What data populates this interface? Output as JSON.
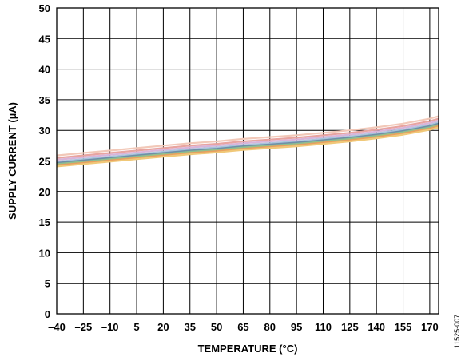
{
  "chart_data": {
    "type": "line",
    "title": "",
    "xlabel": "TEMPERATURE (°C)",
    "ylabel": "SUPPLY CURRENT (µA)",
    "xlim": [
      -40,
      175
    ],
    "ylim": [
      0,
      50
    ],
    "x_ticks": [
      -40,
      -25,
      -10,
      5,
      20,
      35,
      50,
      65,
      80,
      95,
      110,
      125,
      140,
      155,
      170
    ],
    "x_tick_labels": [
      "–40",
      "–25",
      "–10",
      "5",
      "20",
      "35",
      "50",
      "65",
      "80",
      "95",
      "110",
      "125",
      "140",
      "155",
      "170"
    ],
    "y_ticks": [
      0,
      5,
      10,
      15,
      20,
      25,
      30,
      35,
      40,
      45,
      50
    ],
    "y_tick_labels": [
      "0",
      "5",
      "10",
      "15",
      "20",
      "25",
      "30",
      "35",
      "40",
      "45",
      "50"
    ],
    "grid": true,
    "legend": "none",
    "figure_id": "11525-007",
    "x": [
      -40,
      -25,
      -10,
      5,
      20,
      35,
      50,
      65,
      80,
      95,
      110,
      125,
      140,
      155,
      170,
      175
    ],
    "series": [
      {
        "color": "#f2c8b8",
        "values": [
          25.9,
          26.3,
          26.7,
          27.1,
          27.5,
          27.9,
          28.2,
          28.6,
          28.9,
          29.2,
          29.6,
          30.0,
          30.5,
          31.1,
          31.9,
          32.3
        ]
      },
      {
        "color": "#e8a4a0",
        "values": [
          25.5,
          25.9,
          26.3,
          26.7,
          27.1,
          27.5,
          27.8,
          28.2,
          28.5,
          28.8,
          29.2,
          29.6,
          30.1,
          30.7,
          31.5,
          31.9
        ]
      },
      {
        "color": "#d9b4d9",
        "values": [
          25.2,
          25.6,
          26.0,
          26.4,
          26.8,
          27.2,
          27.5,
          27.9,
          28.2,
          28.5,
          28.9,
          29.3,
          29.8,
          30.4,
          31.2,
          31.6
        ]
      },
      {
        "color": "#a9c4dc",
        "values": [
          24.9,
          25.3,
          25.7,
          26.1,
          26.5,
          26.9,
          27.2,
          27.6,
          27.9,
          28.2,
          28.6,
          29.0,
          29.5,
          30.1,
          30.9,
          31.3
        ]
      },
      {
        "color": "#6f8fa8",
        "values": [
          24.7,
          25.1,
          25.5,
          25.9,
          26.3,
          26.7,
          27.0,
          27.4,
          27.7,
          28.0,
          28.4,
          28.8,
          29.3,
          29.9,
          30.7,
          31.1
        ]
      },
      {
        "color": "#8fbf8f",
        "values": [
          24.5,
          24.9,
          25.3,
          25.7,
          26.1,
          26.5,
          26.8,
          27.2,
          27.5,
          27.8,
          28.2,
          28.6,
          29.1,
          29.7,
          30.5,
          30.9
        ]
      },
      {
        "color": "#e8a060",
        "values": [
          24.3,
          24.7,
          25.1,
          25.5,
          25.9,
          26.3,
          26.6,
          27.0,
          27.3,
          27.6,
          28.0,
          28.4,
          28.9,
          29.5,
          30.3,
          30.7
        ]
      },
      {
        "color": "#f0c878",
        "values": [
          24.1,
          24.5,
          24.9,
          25.3,
          25.7,
          26.1,
          26.4,
          26.8,
          27.1,
          27.4,
          27.8,
          28.2,
          28.7,
          29.3,
          30.1,
          30.5
        ]
      }
    ]
  }
}
